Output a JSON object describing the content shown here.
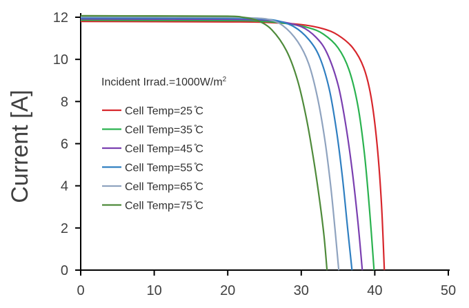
{
  "chart_data": {
    "type": "line",
    "title": "",
    "xlabel": "",
    "ylabel": "Current [A]",
    "xlim": [
      0,
      50
    ],
    "ylim": [
      0,
      12
    ],
    "x_ticks": [
      0,
      10,
      20,
      30,
      40,
      50
    ],
    "y_ticks": [
      0,
      2,
      4,
      6,
      8,
      10,
      12
    ],
    "grid": false,
    "legend_position": "left",
    "annotation": {
      "text": "Incident Irrad.=1000W/m",
      "superscript": "2"
    },
    "series": [
      {
        "name": "Cell Temp=25 ̊C",
        "color": "#d7262c",
        "x": [
          0,
          10,
          20,
          25,
          30,
          33,
          35,
          37,
          38.5,
          39.5,
          40.3,
          40.9,
          41.3
        ],
        "y": [
          11.8,
          11.79,
          11.78,
          11.76,
          11.65,
          11.45,
          11.15,
          10.55,
          9.6,
          8.2,
          6.0,
          3.2,
          0
        ]
      },
      {
        "name": "Cell Temp=35 ̊C",
        "color": "#2ab24f",
        "x": [
          0,
          10,
          20,
          24,
          28,
          31,
          33,
          35,
          36.5,
          37.7,
          38.6,
          39.3,
          39.9
        ],
        "y": [
          11.86,
          11.85,
          11.84,
          11.82,
          11.7,
          11.5,
          11.2,
          10.55,
          9.5,
          7.8,
          5.5,
          2.8,
          0
        ]
      },
      {
        "name": "Cell Temp=45 ̊C",
        "color": "#7a3fb0",
        "x": [
          0,
          10,
          20,
          24,
          27,
          30,
          32,
          33.5,
          35,
          36,
          36.9,
          37.7,
          38.3
        ],
        "y": [
          11.92,
          11.91,
          11.9,
          11.88,
          11.8,
          11.55,
          11.05,
          10.3,
          8.8,
          7.0,
          4.8,
          2.3,
          0
        ]
      },
      {
        "name": "Cell Temp=55 ̊C",
        "color": "#2f7fc1",
        "x": [
          0,
          10,
          20,
          24,
          26.5,
          29,
          31,
          32.5,
          33.8,
          34.8,
          35.6,
          36.3,
          36.9
        ],
        "y": [
          11.97,
          11.96,
          11.95,
          11.92,
          11.85,
          11.55,
          10.95,
          10.1,
          8.6,
          6.6,
          4.4,
          2.0,
          0
        ]
      },
      {
        "name": "Cell Temp=65 ̊C",
        "color": "#8fa3bf",
        "x": [
          0,
          10,
          20,
          23,
          25.5,
          27.5,
          29.5,
          31,
          32.2,
          33.2,
          34,
          34.6,
          35.1
        ],
        "y": [
          12.02,
          12.01,
          12.0,
          11.97,
          11.9,
          11.6,
          10.85,
          9.8,
          8.2,
          6.2,
          4.0,
          1.9,
          0
        ]
      },
      {
        "name": "Cell Temp=75 ̊C",
        "color": "#4e8a3a",
        "x": [
          0,
          10,
          20,
          22,
          24,
          26,
          28,
          29.5,
          30.7,
          31.7,
          32.5,
          33.1,
          33.5
        ],
        "y": [
          12.07,
          12.06,
          12.05,
          12.0,
          11.85,
          11.4,
          10.4,
          9.0,
          7.2,
          5.2,
          3.3,
          1.6,
          0
        ]
      }
    ]
  }
}
